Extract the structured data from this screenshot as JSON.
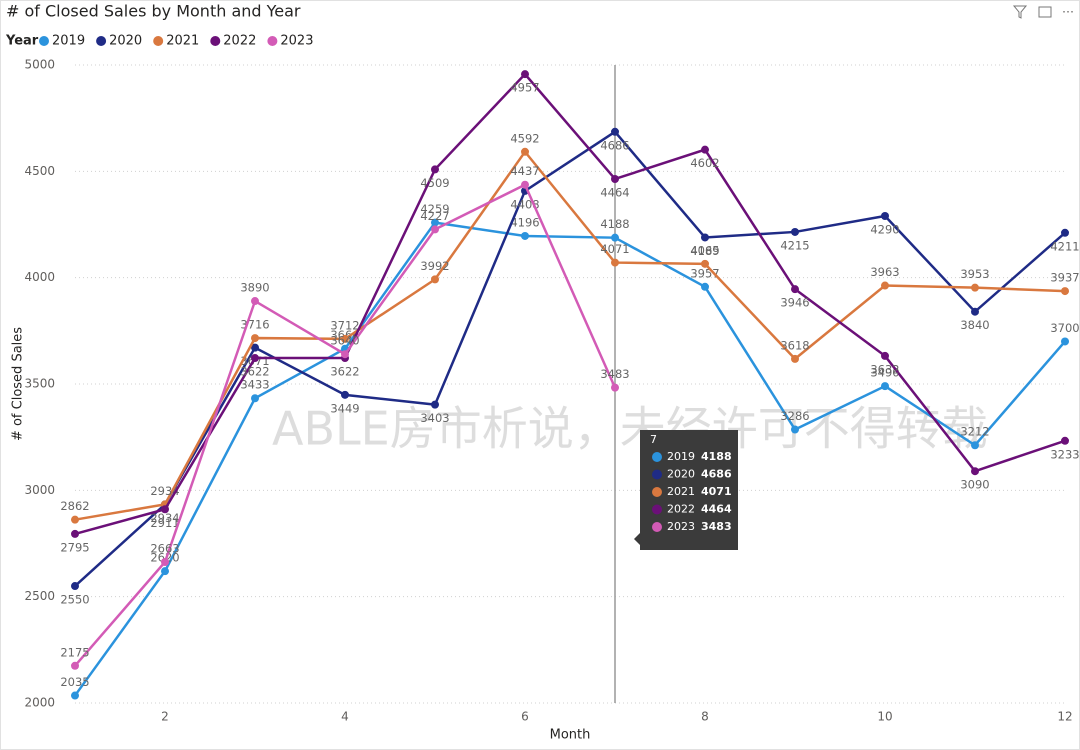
{
  "chart_data": {
    "type": "line",
    "title": "# of Closed Sales by Month and Year",
    "legend_title": "Year",
    "x_label": "Month",
    "y_label": "# of Closed Sales",
    "x": [
      1,
      2,
      3,
      4,
      5,
      6,
      7,
      8,
      9,
      10,
      11,
      12
    ],
    "xlim": [
      1,
      12
    ],
    "xticks": [
      2,
      4,
      6,
      8,
      10,
      12
    ],
    "ylim": [
      2000,
      5000
    ],
    "yticks": [
      2000,
      2500,
      3000,
      3500,
      4000,
      4500,
      5000
    ],
    "grid": true,
    "legend": "top-left",
    "series": [
      {
        "name": "2019",
        "color": "#2b93dd",
        "values": [
          2035,
          2620,
          3433,
          3666,
          4259,
          4196,
          4188,
          3957,
          3286,
          3490,
          3212,
          3700
        ]
      },
      {
        "name": "2020",
        "color": "#1f2b86",
        "values": [
          2550,
          2934,
          3671,
          3449,
          3403,
          4408,
          4686,
          4189,
          4215,
          4290,
          3840,
          4211
        ]
      },
      {
        "name": "2021",
        "color": "#d9783f",
        "values": [
          2862,
          2934,
          3716,
          3712,
          3992,
          4592,
          4071,
          4065,
          3618,
          3963,
          3953,
          3937
        ]
      },
      {
        "name": "2022",
        "color": "#6b1078",
        "values": [
          2795,
          2911,
          3622,
          3622,
          4509,
          4957,
          4464,
          4602,
          3946,
          3632,
          3090,
          3233
        ]
      },
      {
        "name": "2023",
        "color": "#d35bb6",
        "values": [
          2175,
          2663,
          3890,
          3640,
          4227,
          4437,
          3483,
          null,
          null,
          null,
          null,
          null
        ]
      }
    ],
    "tooltip_index": 6,
    "watermark": "ABLE房市析说，未经许可不得转载"
  }
}
